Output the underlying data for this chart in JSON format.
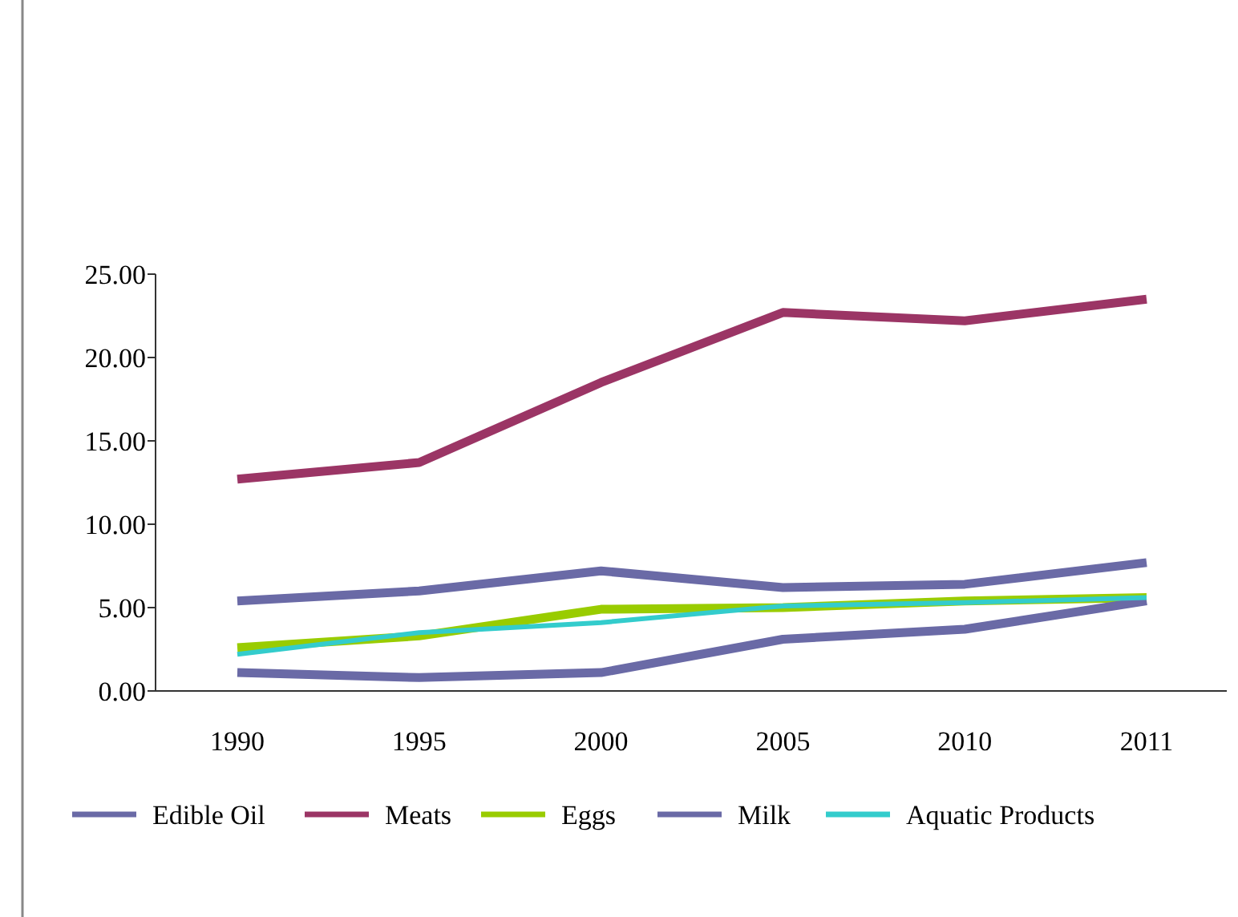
{
  "chart_data": {
    "type": "line",
    "categories": [
      "1990",
      "1995",
      "2000",
      "2005",
      "2010",
      "2011"
    ],
    "series": [
      {
        "name": "Edible Oil",
        "color": "#6a6aa6",
        "values": [
          5.4,
          6.0,
          7.2,
          6.2,
          6.4,
          7.7
        ]
      },
      {
        "name": "Meats",
        "color": "#9b3565",
        "values": [
          12.7,
          13.7,
          18.5,
          22.7,
          22.2,
          23.5
        ]
      },
      {
        "name": "Eggs",
        "color": "#99cc00",
        "values": [
          2.6,
          3.3,
          4.9,
          5.0,
          5.4,
          5.6
        ]
      },
      {
        "name": "Milk",
        "color": "#6a6aa6",
        "values": [
          1.1,
          0.8,
          1.1,
          3.1,
          3.7,
          5.4
        ]
      },
      {
        "name": "Aquatic Products",
        "color": "#33cccc",
        "values": [
          2.2,
          3.5,
          4.1,
          5.1,
          5.3,
          5.6
        ]
      }
    ],
    "ylim": [
      0,
      25
    ],
    "yticks": [
      {
        "value": 0,
        "label": "0.00"
      },
      {
        "value": 5,
        "label": "5.00"
      },
      {
        "value": 10,
        "label": "10.00"
      },
      {
        "value": 15,
        "label": "15.00"
      },
      {
        "value": 20,
        "label": "20.00"
      },
      {
        "value": 25,
        "label": "25.00"
      }
    ],
    "grid": false,
    "legend": "bottom",
    "marker": "none",
    "line_style": "solid"
  }
}
